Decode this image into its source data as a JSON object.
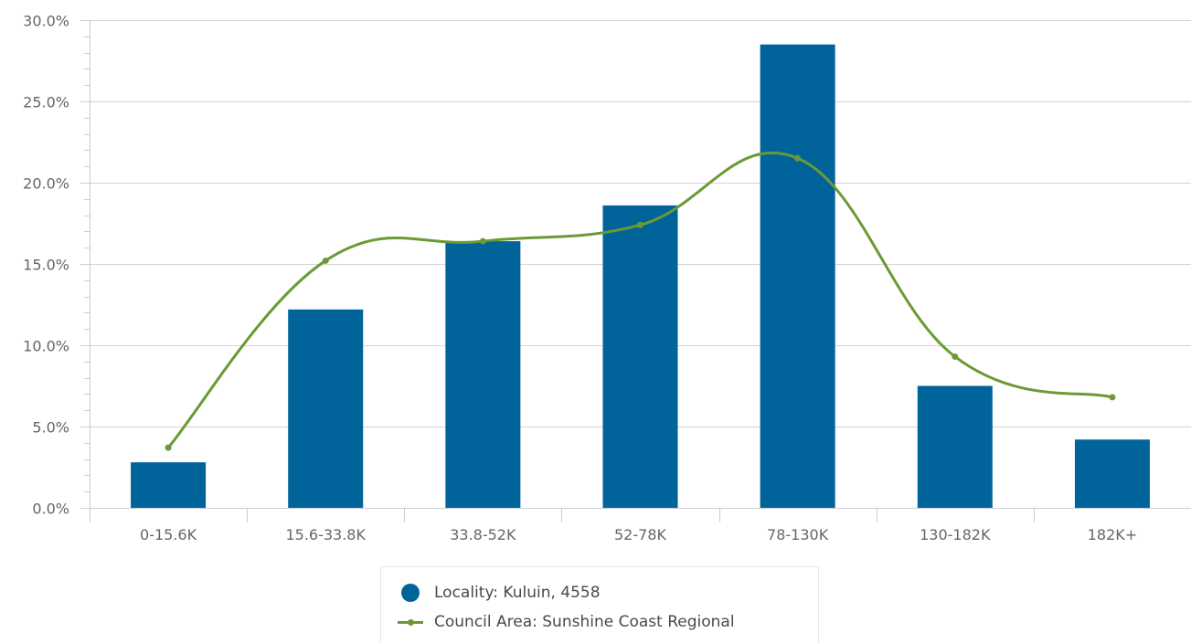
{
  "chart_data": {
    "type": "bar",
    "categories": [
      "0-15.6K",
      "15.6-33.8K",
      "33.8-52K",
      "52-78K",
      "78-130K",
      "130-182K",
      "182K+"
    ],
    "series": [
      {
        "name": "Locality: Kuluin, 4558",
        "kind": "bar",
        "color": "#00649a",
        "values": [
          2.8,
          12.2,
          16.4,
          18.6,
          28.5,
          7.5,
          4.2
        ]
      },
      {
        "name": "Council Area: Sunshine Coast Regional",
        "kind": "line",
        "smooth": true,
        "color": "#6b9a35",
        "values": [
          3.7,
          15.2,
          16.4,
          17.4,
          21.5,
          9.3,
          6.8
        ]
      }
    ],
    "ylim": [
      0,
      30
    ],
    "yticks": [
      "0.0%",
      "5.0%",
      "10.0%",
      "15.0%",
      "20.0%",
      "25.0%",
      "30.0%"
    ],
    "ytick_values": [
      0,
      5,
      10,
      15,
      20,
      25,
      30
    ],
    "grid": true,
    "legend_position": "bottom-center"
  }
}
